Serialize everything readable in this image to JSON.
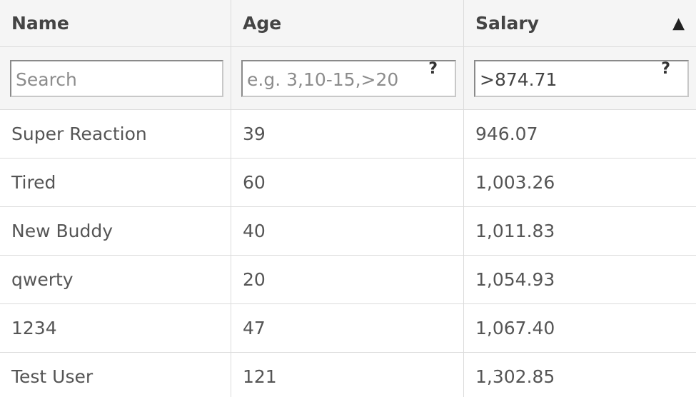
{
  "columns": [
    {
      "label": "Name",
      "filter_value": "",
      "filter_placeholder": "Search",
      "has_help": false,
      "sorted": false
    },
    {
      "label": "Age",
      "filter_value": "",
      "filter_placeholder": "e.g. 3,10-15,>20",
      "has_help": true,
      "sorted": false
    },
    {
      "label": "Salary",
      "filter_value": ">874.71",
      "filter_placeholder": "",
      "has_help": true,
      "sorted": true
    }
  ],
  "sort_indicator": "▲",
  "help_glyph": "?",
  "rows": [
    {
      "name": "Super Reaction",
      "age": "39",
      "salary": "946.07"
    },
    {
      "name": "Tired",
      "age": "60",
      "salary": "1,003.26"
    },
    {
      "name": "New Buddy",
      "age": "40",
      "salary": "1,011.83"
    },
    {
      "name": "qwerty",
      "age": "20",
      "salary": "1,054.93"
    },
    {
      "name": "1234",
      "age": "47",
      "salary": "1,067.40"
    },
    {
      "name": "Test User",
      "age": "121",
      "salary": "1,302.85"
    }
  ]
}
